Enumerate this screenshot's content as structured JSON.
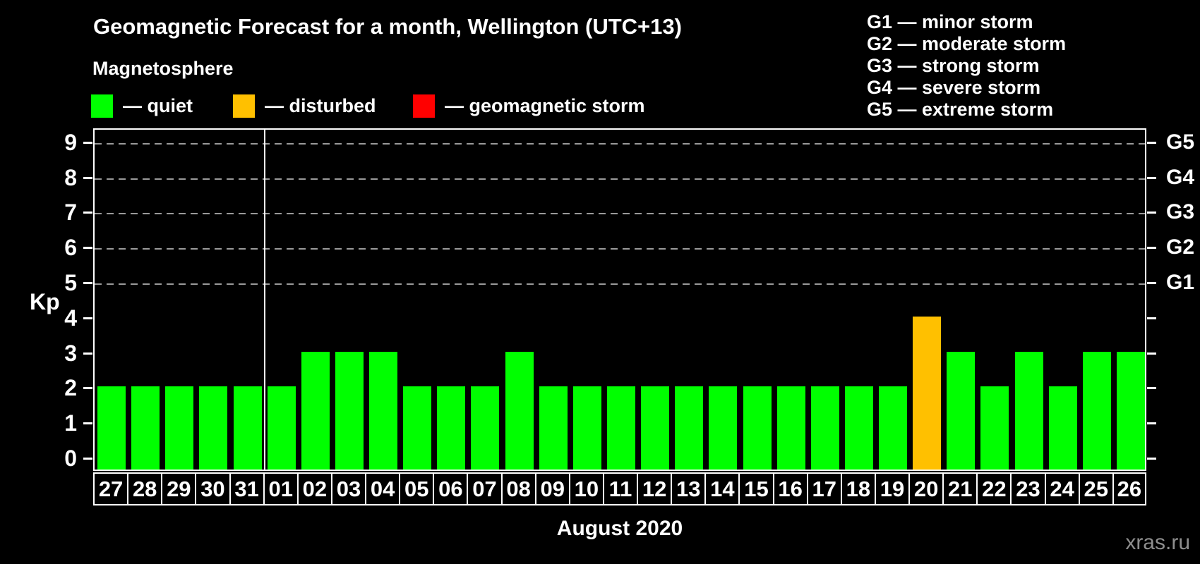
{
  "title": "Geomagnetic Forecast for a month, Wellington (UTC+13)",
  "subtitle": "Magnetosphere",
  "legend": {
    "items": [
      {
        "key": "quiet",
        "label": "— quiet",
        "color": "#00ff00"
      },
      {
        "key": "disturbed",
        "label": "— disturbed",
        "color": "#ffc000"
      },
      {
        "key": "storm",
        "label": "— geomagnetic storm",
        "color": "#ff0000"
      }
    ]
  },
  "g_scale_legend": [
    "G1 — minor storm",
    "G2 — moderate storm",
    "G3 — strong storm",
    "G4 — severe storm",
    "G5 — extreme storm"
  ],
  "watermark": "xras.ru",
  "chart_data": {
    "type": "bar",
    "title": "Geomagnetic Forecast for a month, Wellington (UTC+13)",
    "xlabel": "August 2020",
    "ylabel": "Kp",
    "ylim": [
      0,
      9
    ],
    "y_ticks": [
      0,
      1,
      2,
      3,
      4,
      5,
      6,
      7,
      8,
      9
    ],
    "gridline_levels": [
      5,
      6,
      7,
      8,
      9
    ],
    "right_axis": [
      {
        "level": 5,
        "label": "G1"
      },
      {
        "level": 6,
        "label": "G2"
      },
      {
        "level": 7,
        "label": "G3"
      },
      {
        "level": 8,
        "label": "G4"
      },
      {
        "level": 9,
        "label": "G5"
      }
    ],
    "categories": [
      "27",
      "28",
      "29",
      "30",
      "31",
      "01",
      "02",
      "03",
      "04",
      "05",
      "06",
      "07",
      "08",
      "09",
      "10",
      "11",
      "12",
      "13",
      "14",
      "15",
      "16",
      "17",
      "18",
      "19",
      "20",
      "21",
      "22",
      "23",
      "24",
      "25",
      "26"
    ],
    "values": [
      2,
      2,
      2,
      2,
      2,
      2,
      3,
      3,
      3,
      2,
      2,
      2,
      3,
      2,
      2,
      2,
      2,
      2,
      2,
      2,
      2,
      2,
      2,
      2,
      4,
      3,
      2,
      3,
      2,
      3,
      3
    ],
    "statuses": [
      "quiet",
      "quiet",
      "quiet",
      "quiet",
      "quiet",
      "quiet",
      "quiet",
      "quiet",
      "quiet",
      "quiet",
      "quiet",
      "quiet",
      "quiet",
      "quiet",
      "quiet",
      "quiet",
      "quiet",
      "quiet",
      "quiet",
      "quiet",
      "quiet",
      "quiet",
      "quiet",
      "quiet",
      "disturbed",
      "quiet",
      "quiet",
      "quiet",
      "quiet",
      "quiet",
      "quiet"
    ],
    "color_map": {
      "quiet": "#00ff00",
      "disturbed": "#ffc000",
      "storm": "#ff0000"
    },
    "month_separator_before_index": 5,
    "legend_position": "top",
    "grid": "dashed horizontal at G levels only"
  }
}
